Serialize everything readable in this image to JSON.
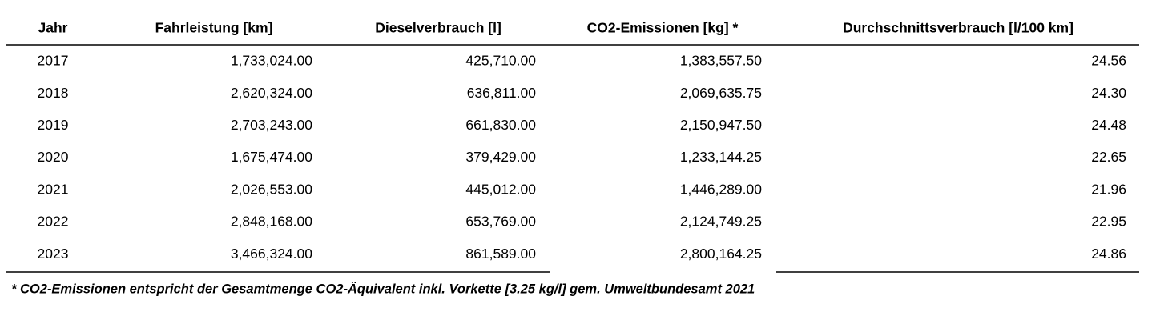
{
  "table": {
    "header": [
      "Jahr",
      "Fahrleistung [km]",
      "Dieselverbrauch [l]",
      "CO2-Emissionen [kg] *",
      "Durchschnittsverbrauch [l/100 km]"
    ],
    "rows": [
      [
        "2017",
        "1,733,024.00",
        "425,710.00",
        "1,383,557.50",
        "24.56"
      ],
      [
        "2018",
        "2,620,324.00",
        "636,811.00",
        "2,069,635.75",
        "24.30"
      ],
      [
        "2019",
        "2,703,243.00",
        "661,830.00",
        "2,150,947.50",
        "24.48"
      ],
      [
        "2020",
        "1,675,474.00",
        "379,429.00",
        "1,233,144.25",
        "22.65"
      ],
      [
        "2021",
        "2,026,553.00",
        "445,012.00",
        "1,446,289.00",
        "21.96"
      ],
      [
        "2022",
        "2,848,168.00",
        "653,769.00",
        "2,124,749.25",
        "22.95"
      ],
      [
        "2023",
        "3,466,324.00",
        "861,589.00",
        "2,800,164.25",
        "24.86"
      ]
    ]
  },
  "footnote": "* CO2-Emissionen entspricht der Gesamtmenge CO2-Äquivalent inkl. Vorkette [3.25 kg/l] gem. Umweltbundesamt 2021"
}
